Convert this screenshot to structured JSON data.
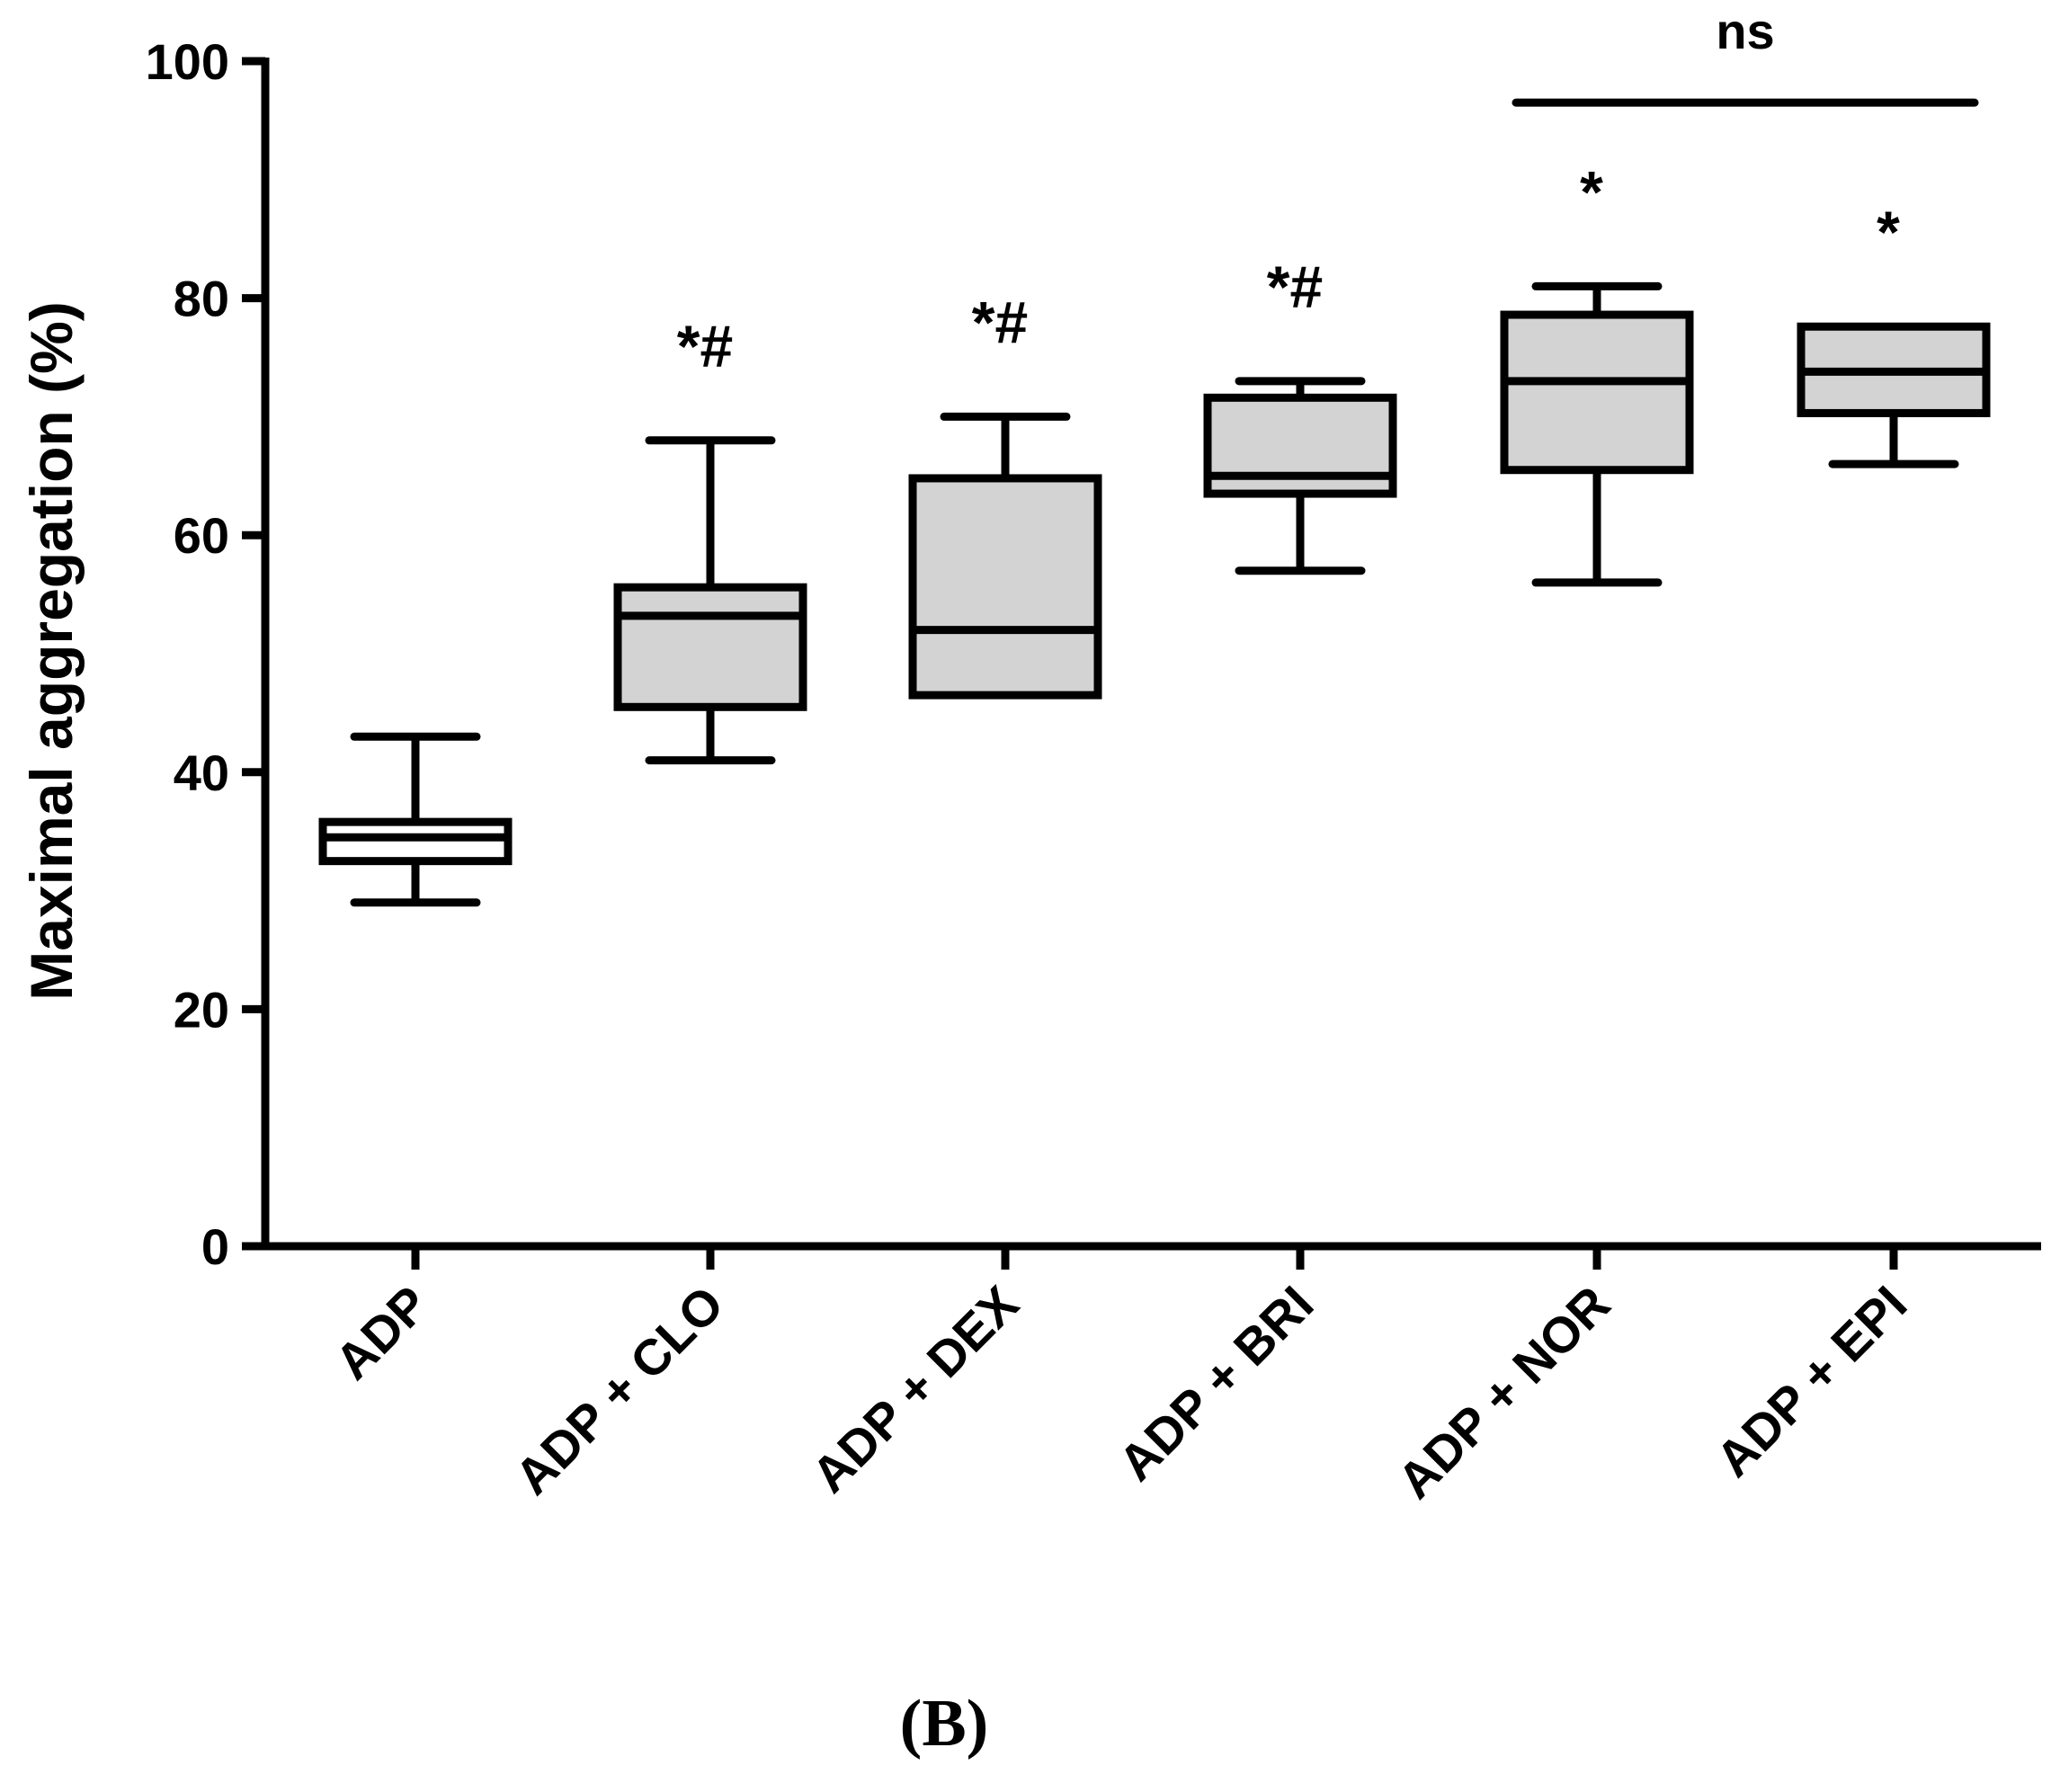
{
  "chart_data": {
    "type": "box",
    "title": "",
    "xlabel": "",
    "ylabel": "Maximal aggregation (%)",
    "ylim": [
      0,
      100
    ],
    "yticks": [
      0,
      20,
      40,
      60,
      80,
      100
    ],
    "categories": [
      "ADP",
      "ADP + CLO",
      "ADP + DEX",
      "ADP + BRI",
      "ADP + NOR",
      "ADP + EPI"
    ],
    "boxes": [
      {
        "category": "ADP",
        "min": 29,
        "q1": 32.5,
        "median": 34.5,
        "q3": 35.8,
        "max": 43,
        "fill": "#ffffff",
        "annotation": ""
      },
      {
        "category": "ADP + CLO",
        "min": 41,
        "q1": 45.5,
        "median": 53.2,
        "q3": 55.6,
        "max": 68,
        "fill": "#d3d3d3",
        "annotation": "*#"
      },
      {
        "category": "ADP + DEX",
        "min": 46.5,
        "q1": 46.5,
        "median": 52,
        "q3": 64.8,
        "max": 70,
        "fill": "#d3d3d3",
        "annotation": "*#"
      },
      {
        "category": "ADP + BRI",
        "min": 57,
        "q1": 63.5,
        "median": 65,
        "q3": 71.6,
        "max": 73,
        "fill": "#d3d3d3",
        "annotation": "*#"
      },
      {
        "category": "ADP + NOR",
        "min": 56,
        "q1": 65.5,
        "median": 73,
        "q3": 78.6,
        "max": 81,
        "fill": "#d3d3d3",
        "annotation": "*"
      },
      {
        "category": "ADP + EPI",
        "min": 66,
        "q1": 70.3,
        "median": 73.8,
        "q3": 77.6,
        "max": 77.6,
        "fill": "#d3d3d3",
        "annotation": "*"
      }
    ],
    "comparison": {
      "from": "ADP + NOR",
      "to": "ADP + EPI",
      "label": "ns",
      "y": 96.5
    },
    "panel_label": "(B)"
  },
  "colors": {
    "axis": "#000000",
    "box_fill": "#d3d3d3",
    "background": "#ffffff"
  }
}
